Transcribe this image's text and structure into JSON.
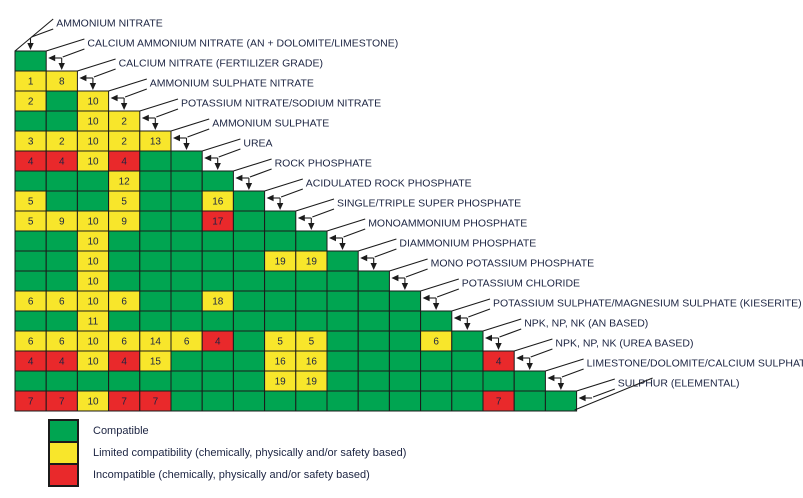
{
  "chart_data": {
    "type": "heatmap",
    "title": "",
    "materials": [
      "AMMONIUM NITRATE",
      "CALCIUM AMMONIUM NITRATE (AN + DOLOMITE/LIMESTONE)",
      "CALCIUM NITRATE (FERTILIZER GRADE)",
      "AMMONIUM SULPHATE NITRATE",
      "POTASSIUM NITRATE/SODIUM NITRATE",
      "AMMONIUM SULPHATE",
      "UREA",
      "ROCK PHOSPHATE",
      "ACIDULATED ROCK PHOSPHATE",
      "SINGLE/TRIPLE SUPER PHOSPHATE",
      "MONOAMMONIUM PHOSPHATE",
      "DIAMMONIUM PHOSPHATE",
      "MONO POTASSIUM PHOSPHATE",
      "POTASSIUM CHLORIDE",
      "POTASSIUM SULPHATE/MAGNESIUM SULPHATE (KIESERITE)",
      "NPK, NP, NK (AN BASED)",
      "NPK, NP, NK (UREA BASED)",
      "LIMESTONE/DOLOMITE/CALCIUM SULPHATE",
      "SULPHUR (ELEMENTAL)"
    ],
    "rows": [
      [
        "G"
      ],
      [
        "Y1",
        "Y8"
      ],
      [
        "Y2",
        "G",
        "Y10"
      ],
      [
        "G",
        "G",
        "Y10",
        "Y2"
      ],
      [
        "Y3",
        "Y2",
        "Y10",
        "Y2",
        "Y13"
      ],
      [
        "R4",
        "R4",
        "Y10",
        "R4",
        "G",
        "G"
      ],
      [
        "G",
        "G",
        "G",
        "Y12",
        "G",
        "G",
        "G"
      ],
      [
        "Y5",
        "G",
        "G",
        "Y5",
        "G",
        "G",
        "Y16",
        "G"
      ],
      [
        "Y5",
        "Y9",
        "Y10",
        "Y9",
        "G",
        "G",
        "R17",
        "G",
        "G"
      ],
      [
        "G",
        "G",
        "Y10",
        "G",
        "G",
        "G",
        "G",
        "G",
        "G",
        "G"
      ],
      [
        "G",
        "G",
        "Y10",
        "G",
        "G",
        "G",
        "G",
        "G",
        "Y19",
        "Y19",
        "G"
      ],
      [
        "G",
        "G",
        "Y10",
        "G",
        "G",
        "G",
        "G",
        "G",
        "G",
        "G",
        "G",
        "G"
      ],
      [
        "Y6",
        "Y6",
        "Y10",
        "Y6",
        "G",
        "G",
        "Y18",
        "G",
        "G",
        "G",
        "G",
        "G",
        "G"
      ],
      [
        "G",
        "G",
        "Y11",
        "G",
        "G",
        "G",
        "G",
        "G",
        "G",
        "G",
        "G",
        "G",
        "G",
        "G"
      ],
      [
        "Y6",
        "Y6",
        "Y10",
        "Y6",
        "Y14",
        "Y6",
        "R4",
        "G",
        "Y5",
        "Y5",
        "G",
        "G",
        "G",
        "Y6",
        "G"
      ],
      [
        "R4",
        "R4",
        "Y10",
        "R4",
        "Y15",
        "G",
        "G",
        "G",
        "Y16",
        "Y16",
        "G",
        "G",
        "G",
        "G",
        "G",
        "R4"
      ],
      [
        "G",
        "G",
        "G",
        "G",
        "G",
        "G",
        "G",
        "G",
        "Y19",
        "Y19",
        "G",
        "G",
        "G",
        "G",
        "G",
        "G",
        "G"
      ],
      [
        "R7",
        "R7",
        "Y10",
        "R7",
        "R7",
        "G",
        "G",
        "G",
        "G",
        "G",
        "G",
        "G",
        "G",
        "G",
        "G",
        "R7",
        "G",
        "G"
      ]
    ],
    "legend": {
      "items": [
        {
          "code": "G",
          "label": "Compatible",
          "color": "#00A551"
        },
        {
          "code": "Y",
          "label": "Limited compatibility (chemically, physically and/or safety based)",
          "color": "#F8E62B"
        },
        {
          "code": "R",
          "label": "Incompatible (chemically, physically and/or safety based)",
          "color": "#E9292B"
        }
      ]
    },
    "line_color": "#1b1b1b",
    "text_color": "#1c2442"
  }
}
